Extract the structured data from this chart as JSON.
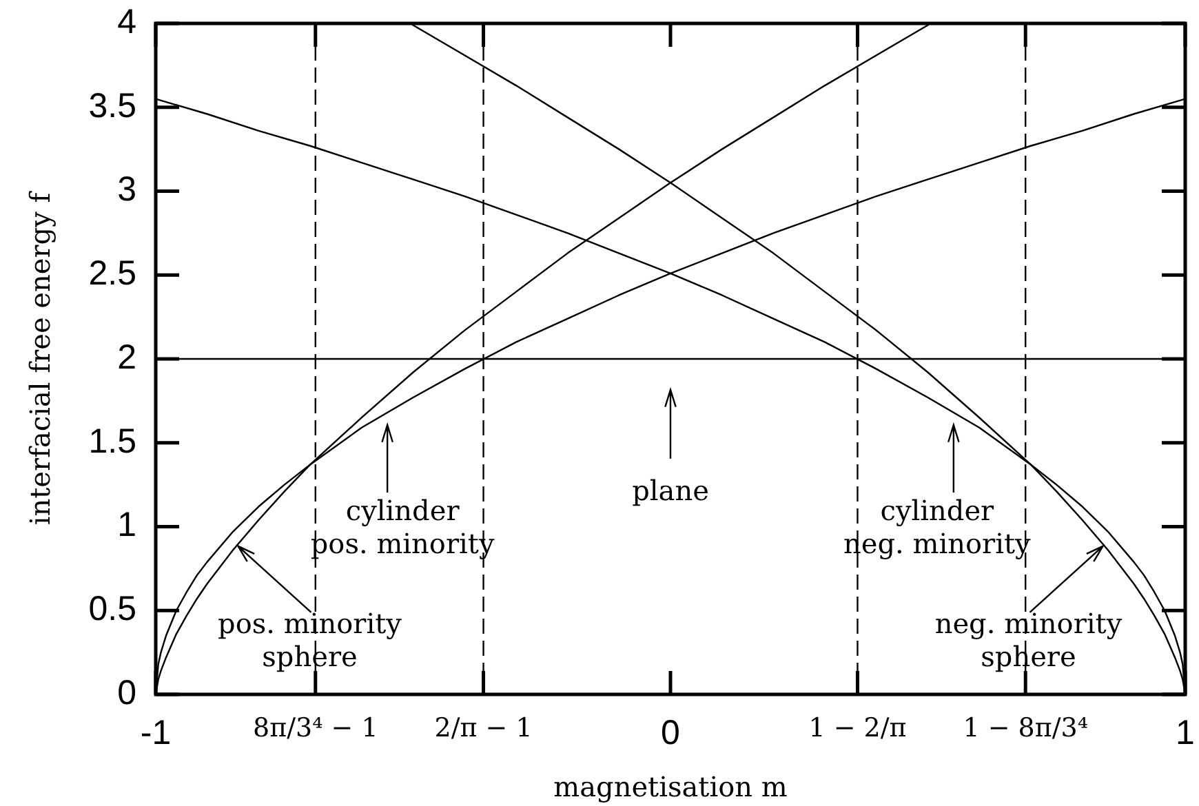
{
  "chart_data": {
    "type": "line",
    "xlabel": "magnetisation m",
    "ylabel": "interfacial free energy f",
    "xlim": [
      -1,
      1
    ],
    "ylim": [
      0,
      4
    ],
    "xticks": [
      -1,
      {
        "value": -0.6897,
        "label": "8π/3⁴ − 1"
      },
      {
        "value": -0.3634,
        "label": "2/π − 1"
      },
      0,
      {
        "value": 0.3634,
        "label": "1 − 2/π"
      },
      {
        "value": 0.6897,
        "label": "1 − 8π/3⁴"
      },
      1
    ],
    "yticks": [
      0,
      0.5,
      1,
      1.5,
      2,
      2.5,
      3,
      3.5,
      4
    ],
    "grid": false,
    "legend": false,
    "marker": "none",
    "line_style": "solid",
    "series": [
      {
        "color": "#000000",
        "x": [
          -1,
          1
        ],
        "values": [
          2,
          2
        ]
      },
      {
        "color": "#000000",
        "x": [
          -1,
          -0.995,
          -0.99,
          -0.98,
          -0.96,
          -0.94,
          -0.92,
          -0.9,
          -0.85,
          -0.8,
          -0.75,
          -0.7,
          -0.6,
          -0.5,
          -0.4,
          -0.3,
          -0.2,
          -0.1,
          0,
          0.1,
          0.2,
          0.3,
          0.4,
          0.5,
          0.6,
          0.7,
          0.8,
          0.9,
          1
        ],
        "values": [
          0,
          0.18,
          0.25,
          0.35,
          0.5,
          0.61,
          0.71,
          0.79,
          0.97,
          1.12,
          1.25,
          1.37,
          1.59,
          1.77,
          1.94,
          2.1,
          2.24,
          2.38,
          2.51,
          2.63,
          2.75,
          2.86,
          2.97,
          3.07,
          3.17,
          3.27,
          3.36,
          3.46,
          3.55
        ]
      },
      {
        "color": "#000000",
        "x": [
          -1,
          -0.9,
          -0.8,
          -0.7,
          -0.6,
          -0.5,
          -0.4,
          -0.3,
          -0.2,
          -0.1,
          0,
          0.1,
          0.2,
          0.3,
          0.4,
          0.5,
          0.6,
          0.7,
          0.75,
          0.8,
          0.85,
          0.9,
          0.92,
          0.94,
          0.96,
          0.98,
          0.99,
          0.995,
          1
        ],
        "values": [
          3.55,
          3.46,
          3.36,
          3.27,
          3.17,
          3.07,
          2.97,
          2.86,
          2.75,
          2.63,
          2.51,
          2.38,
          2.24,
          2.1,
          1.94,
          1.77,
          1.59,
          1.37,
          1.25,
          1.12,
          0.97,
          0.79,
          0.71,
          0.61,
          0.5,
          0.35,
          0.25,
          0.18,
          0
        ]
      },
      {
        "color": "#000000",
        "x": [
          -1,
          -0.995,
          -0.99,
          -0.98,
          -0.96,
          -0.94,
          -0.92,
          -0.9,
          -0.85,
          -0.8,
          -0.75,
          -0.7,
          -0.6,
          -0.5,
          -0.4,
          -0.3,
          -0.2,
          -0.1,
          0,
          0.1,
          0.2,
          0.3,
          0.4,
          0.5,
          0.504
        ],
        "values": [
          0,
          0.09,
          0.14,
          0.22,
          0.36,
          0.47,
          0.57,
          0.66,
          0.86,
          1.04,
          1.21,
          1.37,
          1.65,
          1.92,
          2.17,
          2.4,
          2.63,
          2.84,
          3.05,
          3.25,
          3.44,
          3.63,
          3.81,
          3.99,
          4
        ]
      },
      {
        "color": "#000000",
        "x": [
          -0.504,
          -0.5,
          -0.4,
          -0.3,
          -0.2,
          -0.1,
          0,
          0.1,
          0.2,
          0.3,
          0.4,
          0.5,
          0.6,
          0.7,
          0.75,
          0.8,
          0.85,
          0.9,
          0.92,
          0.94,
          0.96,
          0.98,
          0.99,
          0.995,
          1
        ],
        "values": [
          4,
          3.99,
          3.81,
          3.63,
          3.44,
          3.25,
          3.05,
          2.84,
          2.63,
          2.4,
          2.17,
          1.92,
          1.65,
          1.37,
          1.21,
          1.04,
          0.86,
          0.66,
          0.57,
          0.47,
          0.36,
          0.22,
          0.14,
          0.09,
          0
        ]
      }
    ],
    "ref_lines": [
      {
        "axis": "x",
        "value": -0.6897,
        "line_style": "dashed",
        "color": "#000000"
      },
      {
        "axis": "x",
        "value": -0.3634,
        "line_style": "dashed",
        "color": "#000000"
      },
      {
        "axis": "x",
        "value": 0.3634,
        "line_style": "dashed",
        "color": "#000000"
      },
      {
        "axis": "x",
        "value": 0.6897,
        "line_style": "dashed",
        "color": "#000000"
      }
    ],
    "annotations": [
      {
        "text": "cylinder\npos. minority",
        "x": -0.55,
        "y": 1.68
      },
      "plane",
      {
        "text": "cylinder\nneg. minority",
        "x": 0.55,
        "y": 1.68
      },
      {
        "text": "pos. minority\nsphere",
        "x": -0.84,
        "y": 0.9
      },
      {
        "text": "neg. minority\nsphere",
        "x": 0.84,
        "y": 0.9
      }
    ]
  }
}
